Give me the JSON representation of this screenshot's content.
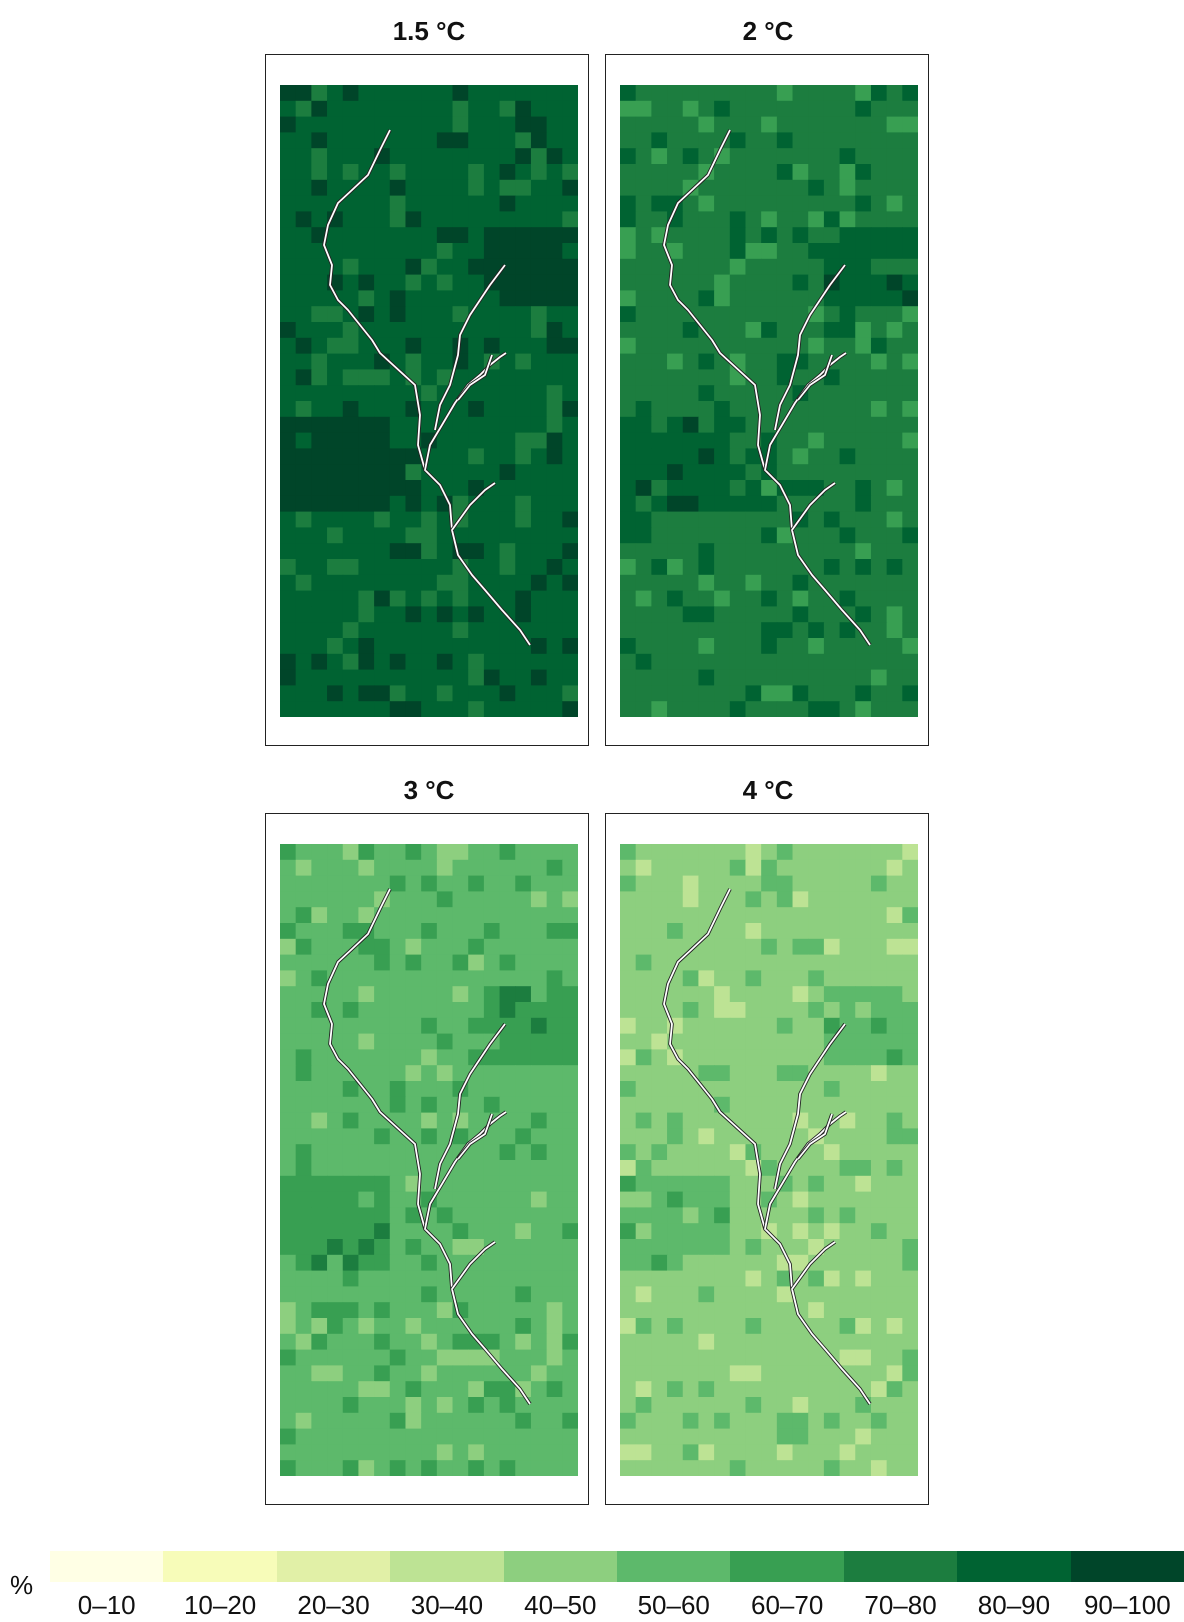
{
  "panels": [
    {
      "title": "1.5 °C",
      "level": 8
    },
    {
      "title": "2 °C",
      "level": 7
    },
    {
      "title": "3 °C",
      "level": 5
    },
    {
      "title": "4 °C",
      "level": 4
    }
  ],
  "legend": {
    "unit": "%",
    "bins": [
      {
        "label": "0–10",
        "color": "#ffffe5"
      },
      {
        "label": "10–20",
        "color": "#f7fcb9"
      },
      {
        "label": "20–30",
        "color": "#e1f0a7"
      },
      {
        "label": "30–40",
        "color": "#bde394"
      },
      {
        "label": "40–50",
        "color": "#8dcf7f"
      },
      {
        "label": "50–60",
        "color": "#5db96b"
      },
      {
        "label": "60–70",
        "color": "#389f52"
      },
      {
        "label": "70–80",
        "color": "#1c7d3f"
      },
      {
        "label": "80–90",
        "color": "#006332"
      },
      {
        "label": "90–100",
        "color": "#004529"
      }
    ]
  },
  "colors": {
    "coastline": "#ffffff",
    "coastline_outline": "#222222",
    "frame": "#222222"
  }
}
